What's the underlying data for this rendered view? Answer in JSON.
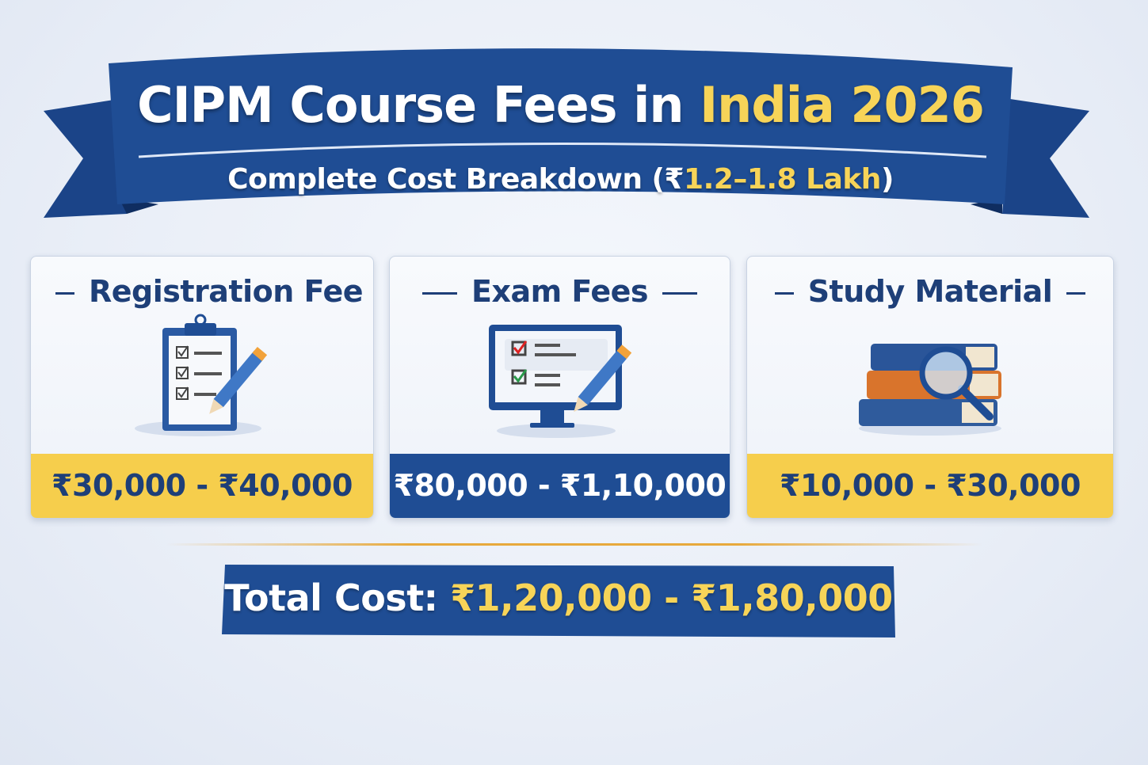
{
  "header": {
    "title_main": "CIPM Course Fees in ",
    "title_highlight": "India 2026",
    "subtitle_main": "Complete Cost Breakdown (₹",
    "subtitle_highlight": "1.2–1.8 Lakh",
    "subtitle_end": ")"
  },
  "cards": [
    {
      "title": "Registration Fee",
      "icon": "clipboard-checklist-icon",
      "price": "₹30,000 - ₹40,000",
      "band_color": "#f6ce4c"
    },
    {
      "title": "Exam Fees",
      "icon": "computer-exam-icon",
      "price": "₹80,000 - ₹1,10,000",
      "band_color": "#1f4d94"
    },
    {
      "title": "Study Material",
      "icon": "books-magnifier-icon",
      "price": "₹10,000 - ₹30,000",
      "band_color": "#f6ce4c"
    }
  ],
  "total": {
    "label": "Total Cost: ",
    "value": "₹1,20,000 - ₹1,80,000"
  },
  "colors": {
    "primary_blue": "#1f4d94",
    "accent_yellow": "#f7d458",
    "text_navy": "#1e3f78"
  }
}
